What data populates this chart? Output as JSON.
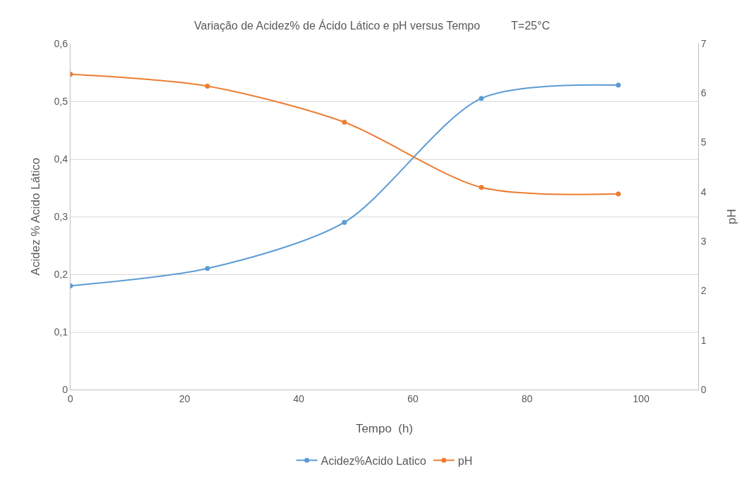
{
  "chart_data": {
    "type": "line",
    "title": "Variação de Acidez% de Ácido Lático e pH versus Tempo          T=25°C",
    "xlabel": "Tempo  (h)",
    "ylabel": "Acidez % Acido Lático",
    "y2label": "pH",
    "x": [
      0,
      24,
      48,
      72,
      96
    ],
    "series": [
      {
        "name": "Acidez%Acido Latico",
        "color": "#5b9bd5",
        "values": [
          0.18,
          0.21,
          0.29,
          0.505,
          0.528
        ]
      },
      {
        "name": "pH",
        "color": "#ed7d31",
        "axis": "y2",
        "values": [
          6.38,
          6.14,
          5.41,
          4.09,
          3.96
        ]
      }
    ],
    "xlim": [
      0,
      110
    ],
    "xticks": [
      0,
      20,
      40,
      60,
      80,
      100
    ],
    "ylim": [
      0,
      0.6
    ],
    "yticks": [
      {
        "value": 0,
        "label": "0"
      },
      {
        "value": 0.1,
        "label": "0,1"
      },
      {
        "value": 0.2,
        "label": "0,2"
      },
      {
        "value": 0.3,
        "label": "0,3"
      },
      {
        "value": 0.4,
        "label": "0,4"
      },
      {
        "value": 0.5,
        "label": "0,5"
      },
      {
        "value": 0.6,
        "label": "0,6"
      }
    ],
    "y2lim": [
      0,
      7
    ],
    "y2ticks": [
      0,
      1,
      2,
      3,
      4,
      5,
      6,
      7
    ],
    "grid": "y",
    "legend": "bottom",
    "marker": "circle",
    "line_style": "solid"
  }
}
